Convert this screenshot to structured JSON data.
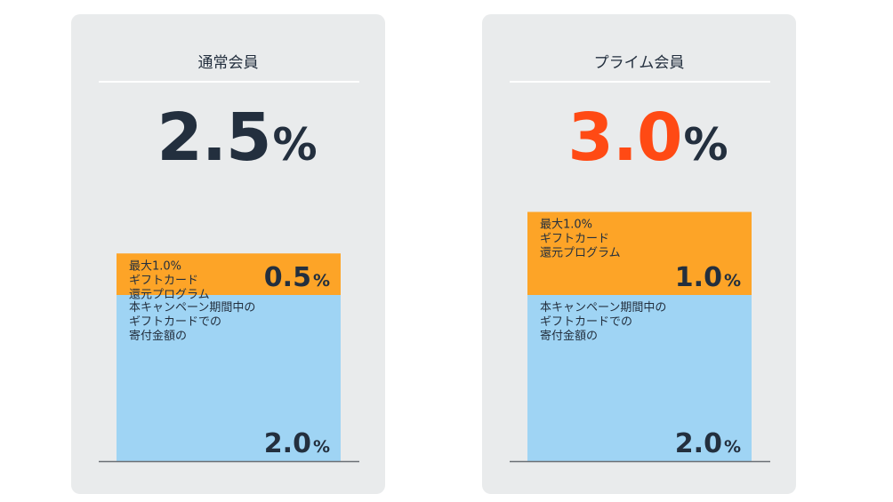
{
  "cards": [
    {
      "title": "通常会員",
      "total_value": "2.5",
      "total_unit": "%",
      "total_accent": false
    },
    {
      "title": "プライム会員",
      "total_value": "3.0",
      "total_unit": "%",
      "total_accent": true
    }
  ],
  "colors": {
    "card_bg": "#e9ebec",
    "text": "#232f3e",
    "accent": "#ff4a14",
    "gift_segment": "#fda427",
    "donation_segment": "#9fd4f4",
    "baseline": "#6b6f74"
  },
  "chart_data": [
    {
      "type": "bar",
      "stacked": true,
      "category": "通常会員",
      "ylim": [
        0,
        3.0
      ],
      "series": [
        {
          "label_lines": [
            "本キャンペーン期間中の",
            "ギフトカードでの",
            "寄付金額の"
          ],
          "value": 2.0,
          "display": "2.0",
          "unit": "%"
        },
        {
          "label_lines": [
            "最大1.0%",
            "ギフトカード",
            "還元プログラム"
          ],
          "value": 0.5,
          "display": "0.5",
          "unit": "%"
        }
      ]
    },
    {
      "type": "bar",
      "stacked": true,
      "category": "プライム会員",
      "ylim": [
        0,
        3.0
      ],
      "series": [
        {
          "label_lines": [
            "本キャンペーン期間中の",
            "ギフトカードでの",
            "寄付金額の"
          ],
          "value": 2.0,
          "display": "2.0",
          "unit": "%"
        },
        {
          "label_lines": [
            "最大1.0%",
            "ギフトカード",
            "還元プログラム"
          ],
          "value": 1.0,
          "display": "1.0",
          "unit": "%"
        }
      ]
    }
  ]
}
